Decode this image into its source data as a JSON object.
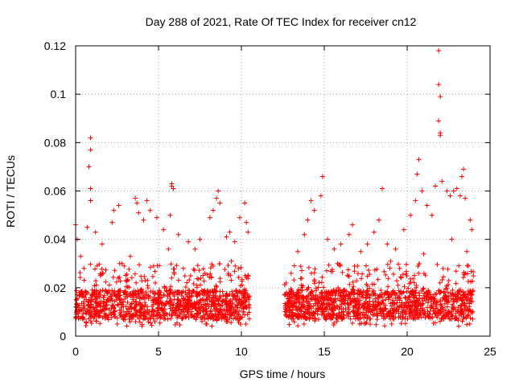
{
  "chart_data": {
    "type": "scatter",
    "title": "Day 288 of 2021, Rate Of TEC Index for receiver cn12",
    "xlabel": "GPS time / hours",
    "ylabel": "ROTI / TECUs",
    "xlim": [
      0,
      25
    ],
    "ylim": [
      0,
      0.12
    ],
    "x_ticks": [
      "0",
      "5",
      "10",
      "15",
      "20",
      "25"
    ],
    "y_ticks": [
      "0",
      "0.02",
      "0.04",
      "0.06",
      "0.08",
      "0.1",
      "0.12"
    ],
    "grid": true,
    "marker": "plus",
    "color": "#ff0000",
    "data_gap_hours": [
      10.5,
      12.6
    ],
    "series": [
      {
        "name": "ROTI",
        "points": [
          [
            0.0,
            0.046
          ],
          [
            0.1,
            0.04
          ],
          [
            0.3,
            0.033
          ],
          [
            0.9,
            0.082
          ],
          [
            0.9,
            0.077
          ],
          [
            0.8,
            0.07
          ],
          [
            0.9,
            0.061
          ],
          [
            0.9,
            0.056
          ],
          [
            0.7,
            0.045
          ],
          [
            1.2,
            0.043
          ],
          [
            1.6,
            0.038
          ],
          [
            2.2,
            0.047
          ],
          [
            2.3,
            0.052
          ],
          [
            2.6,
            0.054
          ],
          [
            3.6,
            0.057
          ],
          [
            3.7,
            0.055
          ],
          [
            3.8,
            0.051
          ],
          [
            4.1,
            0.048
          ],
          [
            4.3,
            0.056
          ],
          [
            4.5,
            0.052
          ],
          [
            4.9,
            0.049
          ],
          [
            5.3,
            0.044
          ],
          [
            5.6,
            0.036
          ],
          [
            5.8,
            0.063
          ],
          [
            5.8,
            0.062
          ],
          [
            5.9,
            0.061
          ],
          [
            5.7,
            0.05
          ],
          [
            6.2,
            0.042
          ],
          [
            6.8,
            0.039
          ],
          [
            7.2,
            0.036
          ],
          [
            7.5,
            0.04
          ],
          [
            8.1,
            0.049
          ],
          [
            8.3,
            0.052
          ],
          [
            8.5,
            0.057
          ],
          [
            8.6,
            0.06
          ],
          [
            8.7,
            0.055
          ],
          [
            9.1,
            0.041
          ],
          [
            9.3,
            0.043
          ],
          [
            9.6,
            0.039
          ],
          [
            9.9,
            0.049
          ],
          [
            10.2,
            0.055
          ],
          [
            10.3,
            0.047
          ],
          [
            10.4,
            0.043
          ],
          [
            0.5,
            0.028
          ],
          [
            1.5,
            0.025
          ],
          [
            2.8,
            0.03
          ],
          [
            3.3,
            0.033
          ],
          [
            4.7,
            0.029
          ],
          [
            6.5,
            0.028
          ],
          [
            7.8,
            0.026
          ],
          [
            9.4,
            0.031
          ],
          [
            12.7,
            0.022
          ],
          [
            13.4,
            0.035
          ],
          [
            13.8,
            0.042
          ],
          [
            14.0,
            0.048
          ],
          [
            14.2,
            0.056
          ],
          [
            14.4,
            0.052
          ],
          [
            14.8,
            0.058
          ],
          [
            14.9,
            0.066
          ],
          [
            15.2,
            0.04
          ],
          [
            15.6,
            0.036
          ],
          [
            16.0,
            0.038
          ],
          [
            16.5,
            0.042
          ],
          [
            16.7,
            0.046
          ],
          [
            17.2,
            0.035
          ],
          [
            17.6,
            0.038
          ],
          [
            18.0,
            0.043
          ],
          [
            18.3,
            0.048
          ],
          [
            18.5,
            0.061
          ],
          [
            18.8,
            0.038
          ],
          [
            19.3,
            0.036
          ],
          [
            19.8,
            0.044
          ],
          [
            20.2,
            0.05
          ],
          [
            20.5,
            0.056
          ],
          [
            20.7,
            0.073
          ],
          [
            20.6,
            0.067
          ],
          [
            20.9,
            0.06
          ],
          [
            21.2,
            0.054
          ],
          [
            21.5,
            0.05
          ],
          [
            21.7,
            0.062
          ],
          [
            21.9,
            0.118
          ],
          [
            21.9,
            0.104
          ],
          [
            22.0,
            0.099
          ],
          [
            21.9,
            0.089
          ],
          [
            22.0,
            0.084
          ],
          [
            22.0,
            0.083
          ],
          [
            22.1,
            0.064
          ],
          [
            22.4,
            0.06
          ],
          [
            22.6,
            0.058
          ],
          [
            22.8,
            0.06
          ],
          [
            23.0,
            0.061
          ],
          [
            23.2,
            0.058
          ],
          [
            23.3,
            0.066
          ],
          [
            23.4,
            0.069
          ],
          [
            23.5,
            0.057
          ],
          [
            23.8,
            0.048
          ],
          [
            23.9,
            0.044
          ],
          [
            13.0,
            0.026
          ],
          [
            15.8,
            0.03
          ],
          [
            17.0,
            0.029
          ],
          [
            19.0,
            0.031
          ],
          [
            21.0,
            0.034
          ],
          [
            22.7,
            0.04
          ],
          [
            23.6,
            0.035
          ]
        ],
        "dense_band": {
          "x_ranges": [
            [
              0.0,
              10.5
            ],
            [
              12.6,
              24.0
            ]
          ],
          "y_center": 0.013,
          "y_spread": [
            0.004,
            0.03
          ]
        }
      }
    ]
  }
}
